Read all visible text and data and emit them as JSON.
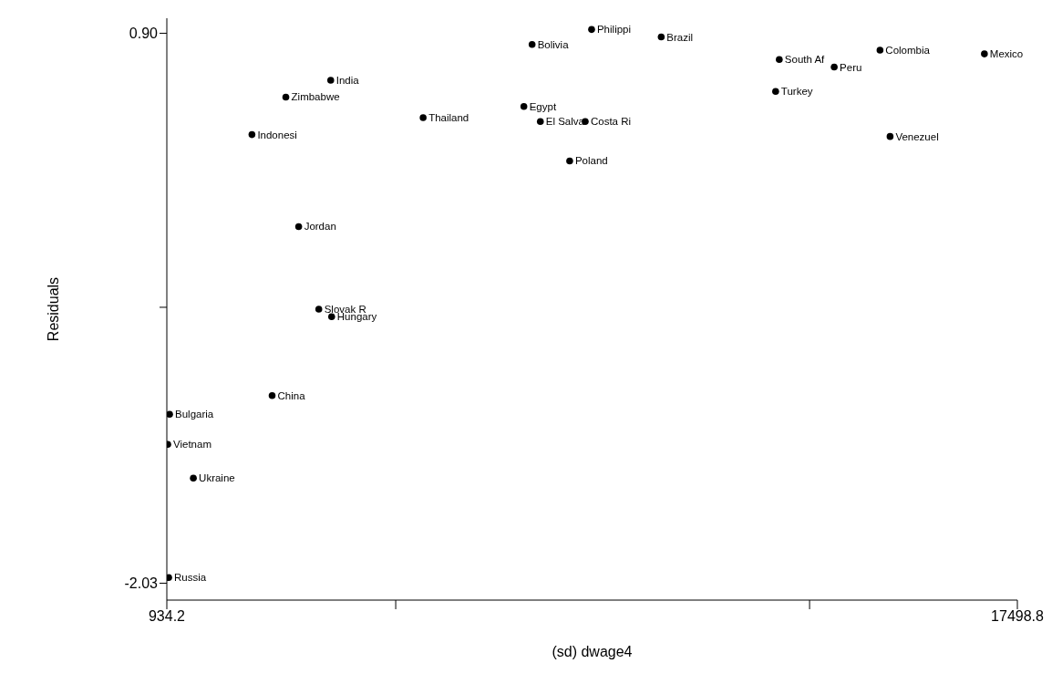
{
  "chart_data": {
    "type": "scatter",
    "xlabel": "(sd) dwage4",
    "ylabel": "Residuals",
    "marker": "circle",
    "xlim": [
      934.2,
      17498.8
    ],
    "xticks": [
      934.2,
      {
        "value": 5392,
        "label": null
      },
      {
        "value": 13452,
        "label": null
      },
      17498.8
    ],
    "ylim": [
      -2.12,
      0.98
    ],
    "yticks": [
      {
        "value": 0.9,
        "label": "0.90"
      },
      {
        "value": -0.56,
        "label": null
      },
      -2.03
    ],
    "grid": false,
    "x": [
      9207,
      8048,
      10563,
      12862,
      13932,
      14824,
      16857,
      12791,
      15020,
      7888,
      8209,
      9083,
      8780,
      4126,
      3252,
      5926,
      2592,
      3502,
      3894,
      4144,
      2985,
      988,
      952,
      1451,
      970
    ],
    "values": [
      0.92,
      0.84,
      0.88,
      0.76,
      0.72,
      0.81,
      0.79,
      0.59,
      0.35,
      0.51,
      0.43,
      0.43,
      0.22,
      0.65,
      0.56,
      0.45,
      0.36,
      -0.13,
      -0.57,
      -0.61,
      -1.03,
      -1.13,
      -1.29,
      -1.47,
      -2.0
    ],
    "color": "#000000",
    "annotations": [
      {
        "text": "Philippi",
        "x": 9207,
        "y": 0.92
      },
      {
        "text": "Bolivia",
        "x": 8048,
        "y": 0.84
      },
      {
        "text": "Brazil",
        "x": 10563,
        "y": 0.88
      },
      {
        "text": "South Af",
        "x": 12862,
        "y": 0.76
      },
      {
        "text": "Peru",
        "x": 13932,
        "y": 0.72
      },
      {
        "text": "Colombia",
        "x": 14824,
        "y": 0.81
      },
      {
        "text": "Mexico",
        "x": 16857,
        "y": 0.79
      },
      {
        "text": "Turkey",
        "x": 12791,
        "y": 0.59
      },
      {
        "text": "Venezuel",
        "x": 15020,
        "y": 0.35
      },
      {
        "text": "Egypt",
        "x": 7888,
        "y": 0.51
      },
      {
        "text": "El Salva",
        "x": 8209,
        "y": 0.43
      },
      {
        "text": "Costa Ri",
        "x": 9083,
        "y": 0.43
      },
      {
        "text": "Poland",
        "x": 8780,
        "y": 0.22
      },
      {
        "text": "India",
        "x": 4126,
        "y": 0.65
      },
      {
        "text": "Zimbabwe",
        "x": 3252,
        "y": 0.56
      },
      {
        "text": "Thailand",
        "x": 5926,
        "y": 0.45
      },
      {
        "text": "Indonesi",
        "x": 2592,
        "y": 0.36
      },
      {
        "text": "Jordan",
        "x": 3502,
        "y": -0.13
      },
      {
        "text": "Slovak R",
        "x": 3894,
        "y": -0.57
      },
      {
        "text": "Hungary",
        "x": 4144,
        "y": -0.61
      },
      {
        "text": "China",
        "x": 2985,
        "y": -1.03
      },
      {
        "text": "Bulgaria",
        "x": 988,
        "y": -1.13
      },
      {
        "text": "Vietnam",
        "x": 952,
        "y": -1.29
      },
      {
        "text": "Ukraine",
        "x": 1451,
        "y": -1.47
      },
      {
        "text": "Russia",
        "x": 970,
        "y": -2.0
      }
    ]
  }
}
